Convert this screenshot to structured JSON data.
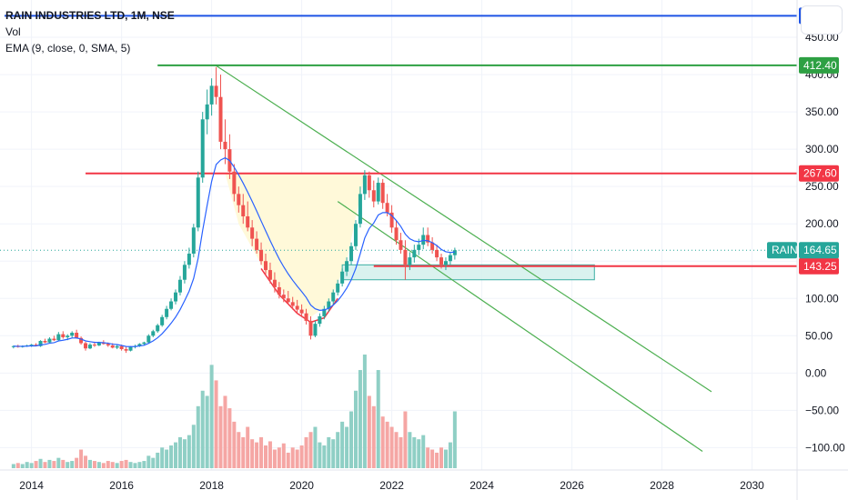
{
  "legend": {
    "title": "RAIN INDUSTRIES LTD, 1M, NSE",
    "vol": "Vol",
    "ema": "EMA (9, close, 0, SMA, 5)"
  },
  "symbol": "RAIN",
  "chart_data": {
    "type": "candlestick",
    "title": "RAIN INDUSTRIES LTD, 1M, NSE",
    "x_ticks": [
      "2014",
      "2016",
      "2018",
      "2020",
      "2022",
      "2024",
      "2026",
      "2028",
      "2030"
    ],
    "y_ticks": [
      450,
      400,
      350,
      300,
      250,
      200,
      150,
      100,
      50,
      0,
      -50,
      -100
    ],
    "y_tick_labels": [
      "450.00",
      "400.00",
      "350.00",
      "300.00",
      "250.00",
      "200.00",
      "150.00",
      "100.00",
      "50.00",
      "0.00",
      "−50.00",
      "−100.00"
    ],
    "ylim": [
      -130,
      500
    ],
    "xlim": [
      2013.3,
      2031
    ],
    "current_price": {
      "label": "164.65",
      "value": 164.65,
      "color": "#26a69a"
    },
    "horizontal_levels": [
      {
        "label": "478.85",
        "value": 478.85,
        "color": "#1e53e5",
        "start": 2013.4
      },
      {
        "label": "412.40",
        "value": 412.4,
        "color": "#2ea043",
        "start": 2016.8
      },
      {
        "label": "267.60",
        "value": 267.6,
        "color": "#f23645",
        "start": 2015.2
      },
      {
        "label": "143.25",
        "value": 143.25,
        "color": "#f23645",
        "start": 2021.6
      }
    ],
    "trendlines": [
      {
        "from": [
          2018.1,
          412
        ],
        "to": [
          2029.1,
          -25
        ],
        "color": "#4caf50"
      },
      {
        "from": [
          2020.8,
          230
        ],
        "to": [
          2028.9,
          -105
        ],
        "color": "#4caf50"
      }
    ],
    "zone": {
      "x0": 2020.9,
      "x1": 2026.5,
      "y0": 125,
      "y1": 145,
      "color": "#26a69a"
    },
    "candles": [
      [
        2013.6,
        35,
        37,
        33,
        36
      ],
      [
        2013.7,
        36,
        38,
        34,
        35
      ],
      [
        2013.8,
        35,
        37,
        34,
        36
      ],
      [
        2013.9,
        36,
        38,
        35,
        37
      ],
      [
        2014.0,
        37,
        39,
        35,
        38
      ],
      [
        2014.1,
        38,
        40,
        36,
        36
      ],
      [
        2014.2,
        36,
        44,
        35,
        43
      ],
      [
        2014.3,
        43,
        46,
        40,
        41
      ],
      [
        2014.4,
        41,
        48,
        40,
        46
      ],
      [
        2014.5,
        46,
        50,
        43,
        44
      ],
      [
        2014.6,
        44,
        55,
        43,
        52
      ],
      [
        2014.7,
        52,
        56,
        46,
        48
      ],
      [
        2014.8,
        48,
        52,
        44,
        50
      ],
      [
        2014.9,
        50,
        56,
        47,
        54
      ],
      [
        2015.0,
        54,
        58,
        46,
        47
      ],
      [
        2015.1,
        47,
        49,
        38,
        40
      ],
      [
        2015.2,
        40,
        42,
        30,
        33
      ],
      [
        2015.3,
        33,
        40,
        32,
        38
      ],
      [
        2015.4,
        38,
        42,
        35,
        37
      ],
      [
        2015.5,
        37,
        42,
        36,
        41
      ],
      [
        2015.6,
        41,
        44,
        38,
        39
      ],
      [
        2015.7,
        39,
        41,
        35,
        37
      ],
      [
        2015.8,
        37,
        40,
        33,
        34
      ],
      [
        2015.9,
        34,
        38,
        32,
        36
      ],
      [
        2016.0,
        36,
        38,
        30,
        32
      ],
      [
        2016.1,
        32,
        35,
        27,
        30
      ],
      [
        2016.2,
        30,
        36,
        29,
        35
      ],
      [
        2016.3,
        35,
        38,
        33,
        36
      ],
      [
        2016.4,
        36,
        40,
        35,
        39
      ],
      [
        2016.5,
        39,
        42,
        37,
        41
      ],
      [
        2016.6,
        41,
        52,
        40,
        50
      ],
      [
        2016.7,
        50,
        58,
        48,
        56
      ],
      [
        2016.8,
        56,
        66,
        54,
        64
      ],
      [
        2016.9,
        64,
        78,
        62,
        75
      ],
      [
        2017.0,
        75,
        90,
        72,
        86
      ],
      [
        2017.1,
        86,
        100,
        84,
        96
      ],
      [
        2017.2,
        96,
        112,
        92,
        108
      ],
      [
        2017.3,
        108,
        130,
        104,
        125
      ],
      [
        2017.4,
        125,
        150,
        120,
        145
      ],
      [
        2017.5,
        145,
        168,
        140,
        160
      ],
      [
        2017.6,
        160,
        200,
        155,
        195
      ],
      [
        2017.7,
        195,
        270,
        190,
        262
      ],
      [
        2017.8,
        262,
        350,
        255,
        340
      ],
      [
        2017.9,
        340,
        380,
        320,
        360
      ],
      [
        2018.0,
        360,
        395,
        345,
        385
      ],
      [
        2018.1,
        385,
        410,
        360,
        370
      ],
      [
        2018.2,
        370,
        400,
        300,
        310
      ],
      [
        2018.3,
        310,
        340,
        280,
        300
      ],
      [
        2018.4,
        300,
        320,
        260,
        270
      ],
      [
        2018.5,
        270,
        280,
        230,
        240
      ],
      [
        2018.6,
        240,
        250,
        215,
        225
      ],
      [
        2018.7,
        225,
        240,
        200,
        210
      ],
      [
        2018.8,
        210,
        230,
        190,
        195
      ],
      [
        2018.9,
        195,
        205,
        170,
        180
      ],
      [
        2019.0,
        180,
        190,
        160,
        165
      ],
      [
        2019.1,
        165,
        175,
        145,
        150
      ],
      [
        2019.2,
        150,
        160,
        130,
        138
      ],
      [
        2019.3,
        138,
        148,
        120,
        125
      ],
      [
        2019.4,
        125,
        135,
        108,
        115
      ],
      [
        2019.5,
        115,
        122,
        100,
        105
      ],
      [
        2019.6,
        105,
        112,
        95,
        100
      ],
      [
        2019.7,
        100,
        110,
        92,
        95
      ],
      [
        2019.8,
        95,
        102,
        85,
        90
      ],
      [
        2019.9,
        90,
        98,
        80,
        85
      ],
      [
        2020.0,
        85,
        92,
        75,
        80
      ],
      [
        2020.1,
        80,
        86,
        65,
        70
      ],
      [
        2020.2,
        70,
        76,
        45,
        50
      ],
      [
        2020.3,
        50,
        70,
        48,
        66
      ],
      [
        2020.4,
        66,
        80,
        62,
        76
      ],
      [
        2020.5,
        76,
        90,
        72,
        86
      ],
      [
        2020.6,
        86,
        100,
        82,
        96
      ],
      [
        2020.7,
        96,
        112,
        92,
        108
      ],
      [
        2020.8,
        108,
        125,
        104,
        120
      ],
      [
        2020.9,
        120,
        140,
        116,
        136
      ],
      [
        2021.0,
        136,
        155,
        130,
        150
      ],
      [
        2021.1,
        150,
        175,
        145,
        170
      ],
      [
        2021.2,
        170,
        205,
        165,
        200
      ],
      [
        2021.3,
        200,
        250,
        195,
        240
      ],
      [
        2021.4,
        240,
        272,
        232,
        265
      ],
      [
        2021.5,
        265,
        270,
        235,
        245
      ],
      [
        2021.6,
        245,
        258,
        222,
        230
      ],
      [
        2021.7,
        230,
        262,
        226,
        255
      ],
      [
        2021.8,
        255,
        260,
        220,
        228
      ],
      [
        2021.9,
        228,
        240,
        210,
        215
      ],
      [
        2022.0,
        215,
        225,
        188,
        195
      ],
      [
        2022.1,
        195,
        205,
        172,
        178
      ],
      [
        2022.2,
        178,
        188,
        160,
        165
      ],
      [
        2022.3,
        165,
        178,
        125,
        145
      ],
      [
        2022.4,
        145,
        162,
        138,
        155
      ],
      [
        2022.5,
        155,
        172,
        148,
        165
      ],
      [
        2022.6,
        165,
        180,
        158,
        172
      ],
      [
        2022.7,
        172,
        195,
        166,
        185
      ],
      [
        2022.8,
        185,
        195,
        170,
        175
      ],
      [
        2022.9,
        175,
        182,
        160,
        165
      ],
      [
        2023.0,
        165,
        172,
        150,
        155
      ],
      [
        2023.1,
        155,
        160,
        140,
        145
      ],
      [
        2023.2,
        145,
        155,
        138,
        150
      ],
      [
        2023.3,
        150,
        162,
        145,
        158
      ],
      [
        2023.4,
        158,
        168,
        152,
        164.65
      ]
    ],
    "volume": [
      [
        2013.6,
        4
      ],
      [
        2013.7,
        5
      ],
      [
        2013.8,
        4
      ],
      [
        2013.9,
        6
      ],
      [
        2014.0,
        5
      ],
      [
        2014.1,
        7
      ],
      [
        2014.2,
        9
      ],
      [
        2014.3,
        6
      ],
      [
        2014.4,
        8
      ],
      [
        2014.5,
        7
      ],
      [
        2014.6,
        10
      ],
      [
        2014.7,
        8
      ],
      [
        2014.8,
        6
      ],
      [
        2014.9,
        7
      ],
      [
        2015.0,
        10
      ],
      [
        2015.1,
        18
      ],
      [
        2015.2,
        12
      ],
      [
        2015.3,
        8
      ],
      [
        2015.4,
        7
      ],
      [
        2015.5,
        6
      ],
      [
        2015.6,
        5
      ],
      [
        2015.7,
        7
      ],
      [
        2015.8,
        6
      ],
      [
        2015.9,
        5
      ],
      [
        2016.0,
        7
      ],
      [
        2016.1,
        8
      ],
      [
        2016.2,
        6
      ],
      [
        2016.3,
        5
      ],
      [
        2016.4,
        6
      ],
      [
        2016.5,
        7
      ],
      [
        2016.6,
        12
      ],
      [
        2016.7,
        10
      ],
      [
        2016.8,
        15
      ],
      [
        2016.9,
        20
      ],
      [
        2017.0,
        18
      ],
      [
        2017.1,
        22
      ],
      [
        2017.2,
        25
      ],
      [
        2017.3,
        30
      ],
      [
        2017.4,
        28
      ],
      [
        2017.5,
        32
      ],
      [
        2017.6,
        42
      ],
      [
        2017.7,
        60
      ],
      [
        2017.8,
        75
      ],
      [
        2017.9,
        70
      ],
      [
        2018.0,
        100
      ],
      [
        2018.1,
        85
      ],
      [
        2018.2,
        60
      ],
      [
        2018.3,
        70
      ],
      [
        2018.4,
        58
      ],
      [
        2018.5,
        45
      ],
      [
        2018.6,
        35
      ],
      [
        2018.7,
        30
      ],
      [
        2018.8,
        40
      ],
      [
        2018.9,
        28
      ],
      [
        2019.0,
        25
      ],
      [
        2019.1,
        30
      ],
      [
        2019.2,
        22
      ],
      [
        2019.3,
        26
      ],
      [
        2019.4,
        18
      ],
      [
        2019.5,
        20
      ],
      [
        2019.6,
        24
      ],
      [
        2019.7,
        15
      ],
      [
        2019.8,
        20
      ],
      [
        2019.9,
        18
      ],
      [
        2020.0,
        22
      ],
      [
        2020.1,
        30
      ],
      [
        2020.2,
        35
      ],
      [
        2020.3,
        40
      ],
      [
        2020.4,
        25
      ],
      [
        2020.5,
        22
      ],
      [
        2020.6,
        30
      ],
      [
        2020.7,
        28
      ],
      [
        2020.8,
        35
      ],
      [
        2020.9,
        45
      ],
      [
        2021.0,
        40
      ],
      [
        2021.1,
        55
      ],
      [
        2021.2,
        75
      ],
      [
        2021.3,
        95
      ],
      [
        2021.4,
        110
      ],
      [
        2021.5,
        70
      ],
      [
        2021.6,
        60
      ],
      [
        2021.7,
        95
      ],
      [
        2021.8,
        50
      ],
      [
        2021.9,
        45
      ],
      [
        2022.0,
        40
      ],
      [
        2022.1,
        35
      ],
      [
        2022.2,
        30
      ],
      [
        2022.3,
        55
      ],
      [
        2022.4,
        35
      ],
      [
        2022.5,
        30
      ],
      [
        2022.6,
        28
      ],
      [
        2022.7,
        32
      ],
      [
        2022.8,
        20
      ],
      [
        2022.9,
        18
      ],
      [
        2023.0,
        15
      ],
      [
        2023.1,
        20
      ],
      [
        2023.2,
        18
      ],
      [
        2023.3,
        25
      ],
      [
        2023.4,
        55
      ]
    ]
  },
  "colors": {
    "up": "#26a69a",
    "down": "#ef5350",
    "vol_up": "#8fcfc5",
    "vol_down": "#f5a6a4",
    "ema": "#2962ff",
    "grid": "#f0f3fa",
    "axis_text": "#131722",
    "pattern_fill": "#fff9d9",
    "curve": "#f23645"
  }
}
